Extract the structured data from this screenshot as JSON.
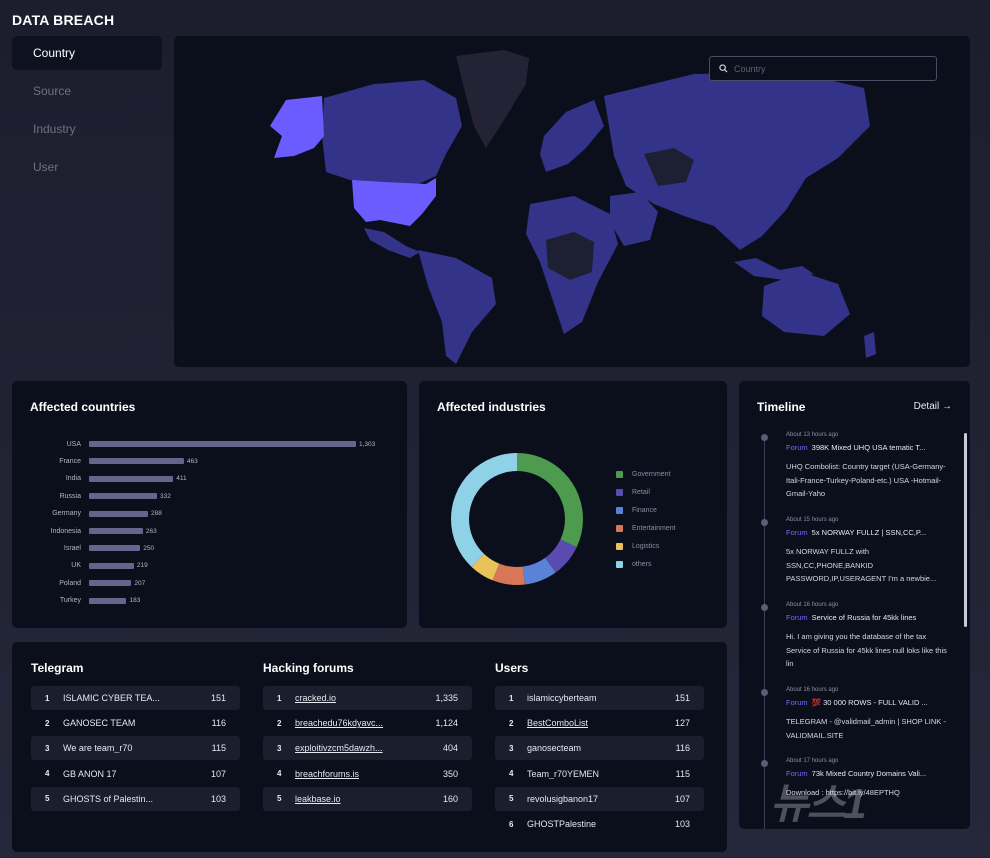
{
  "app": {
    "title": "DATA BREACH"
  },
  "sidebar": {
    "items": [
      {
        "label": "Country",
        "active": true
      },
      {
        "label": "Source",
        "active": false
      },
      {
        "label": "Industry",
        "active": false
      },
      {
        "label": "User",
        "active": false
      }
    ]
  },
  "map": {
    "search_placeholder": "Country",
    "highlighted_region": "USA",
    "highlight_color": "#6a5cff",
    "land_color": "#34338a",
    "ocean_color": "#0b0e1b"
  },
  "affected_countries": {
    "title": "Affected countries",
    "chart_data": {
      "type": "bar",
      "orientation": "horizontal",
      "categories": [
        "USA",
        "France",
        "India",
        "Russia",
        "Germany",
        "Indonesia",
        "Israel",
        "UK",
        "Poland",
        "Turkey"
      ],
      "values": [
        1303,
        463,
        411,
        332,
        288,
        263,
        250,
        219,
        207,
        183
      ],
      "value_labels": [
        "1,303",
        "463",
        "411",
        "332",
        "288",
        "263",
        "250",
        "219",
        "207",
        "183"
      ]
    }
  },
  "affected_industries": {
    "title": "Affected industries",
    "chart_data": {
      "type": "pie",
      "donut": true,
      "categories": [
        "Government",
        "Retail",
        "Finance",
        "Entertainment",
        "Logistics",
        "others"
      ],
      "values": [
        32,
        8,
        8,
        8,
        6,
        38
      ],
      "colors": [
        "#4e9a4f",
        "#5a4bb0",
        "#5a82d6",
        "#d8765a",
        "#e8c35a",
        "#8fd2e8"
      ]
    }
  },
  "timeline": {
    "title": "Timeline",
    "detail_label": "Detail",
    "entries": [
      {
        "time": "About 13 hours ago",
        "tag": "Forum",
        "headline": "398K Mixed UHQ USA tematic T...",
        "body": "UHQ Combolist: Country target (USA-Germany-Itali-France-Turkey-Poland-etc.) USA -Hotmail-Gmail-Yaho"
      },
      {
        "time": "About 15 hours ago",
        "tag": "Forum",
        "headline": "5x NORWAY FULLZ | SSN,CC,P...",
        "body": "5x NORWAY FULLZ with SSN,CC,PHONE,BANKID PASSWORD,IP,USERAGENT I'm a newbie..."
      },
      {
        "time": "About 16 hours ago",
        "tag": "Forum",
        "headline": "Service of Russia for 45kk lines",
        "body": "Hi. I am giving you the database of the tax Service of Russia for 45kk lines null loks like this lin"
      },
      {
        "time": "About 16 hours ago",
        "tag": "Forum",
        "headline": "💯 30 000 ROWS - FULL VALID ...",
        "body": "TELEGRAM - @validmail_admin | SHOP LINK - VALIDMAIL.SITE"
      },
      {
        "time": "About 17 hours ago",
        "tag": "Forum",
        "headline": "73k Mixed Country Domains Vali...",
        "body": "Download : https://bit.ly/48EPTHQ"
      }
    ]
  },
  "telegram": {
    "title": "Telegram",
    "rows": [
      {
        "rank": "1",
        "name": "ISLAMIC CYBER TEA...",
        "count": "151"
      },
      {
        "rank": "2",
        "name": "GANOSEC TEAM",
        "count": "116"
      },
      {
        "rank": "3",
        "name": "We are team_r70",
        "count": "115"
      },
      {
        "rank": "4",
        "name": "GB ANON 17",
        "count": "107"
      },
      {
        "rank": "5",
        "name": "GHOSTS of Palestin...",
        "count": "103"
      }
    ]
  },
  "hacking_forums": {
    "title": "Hacking forums",
    "rows": [
      {
        "rank": "1",
        "name": "cracked.io",
        "count": "1,335"
      },
      {
        "rank": "2",
        "name": "breachedu76kdyavc...",
        "count": "1,124"
      },
      {
        "rank": "3",
        "name": "exploitivzcm5dawzh...",
        "count": "404"
      },
      {
        "rank": "4",
        "name": "breachforums.is",
        "count": "350"
      },
      {
        "rank": "5",
        "name": "leakbase.io",
        "count": "160"
      }
    ]
  },
  "users": {
    "title": "Users",
    "rows": [
      {
        "rank": "1",
        "name": "islamiccyberteam",
        "count": "151"
      },
      {
        "rank": "2",
        "name": "BestComboList",
        "count": "127"
      },
      {
        "rank": "3",
        "name": "ganosecteam",
        "count": "116"
      },
      {
        "rank": "4",
        "name": "Team_r70YEMEN",
        "count": "115"
      },
      {
        "rank": "5",
        "name": "revolusigbanon17",
        "count": "107"
      },
      {
        "rank": "6",
        "name": "GHOSTPalestine",
        "count": "103"
      }
    ]
  },
  "watermark": {
    "text": "뉴스1"
  }
}
